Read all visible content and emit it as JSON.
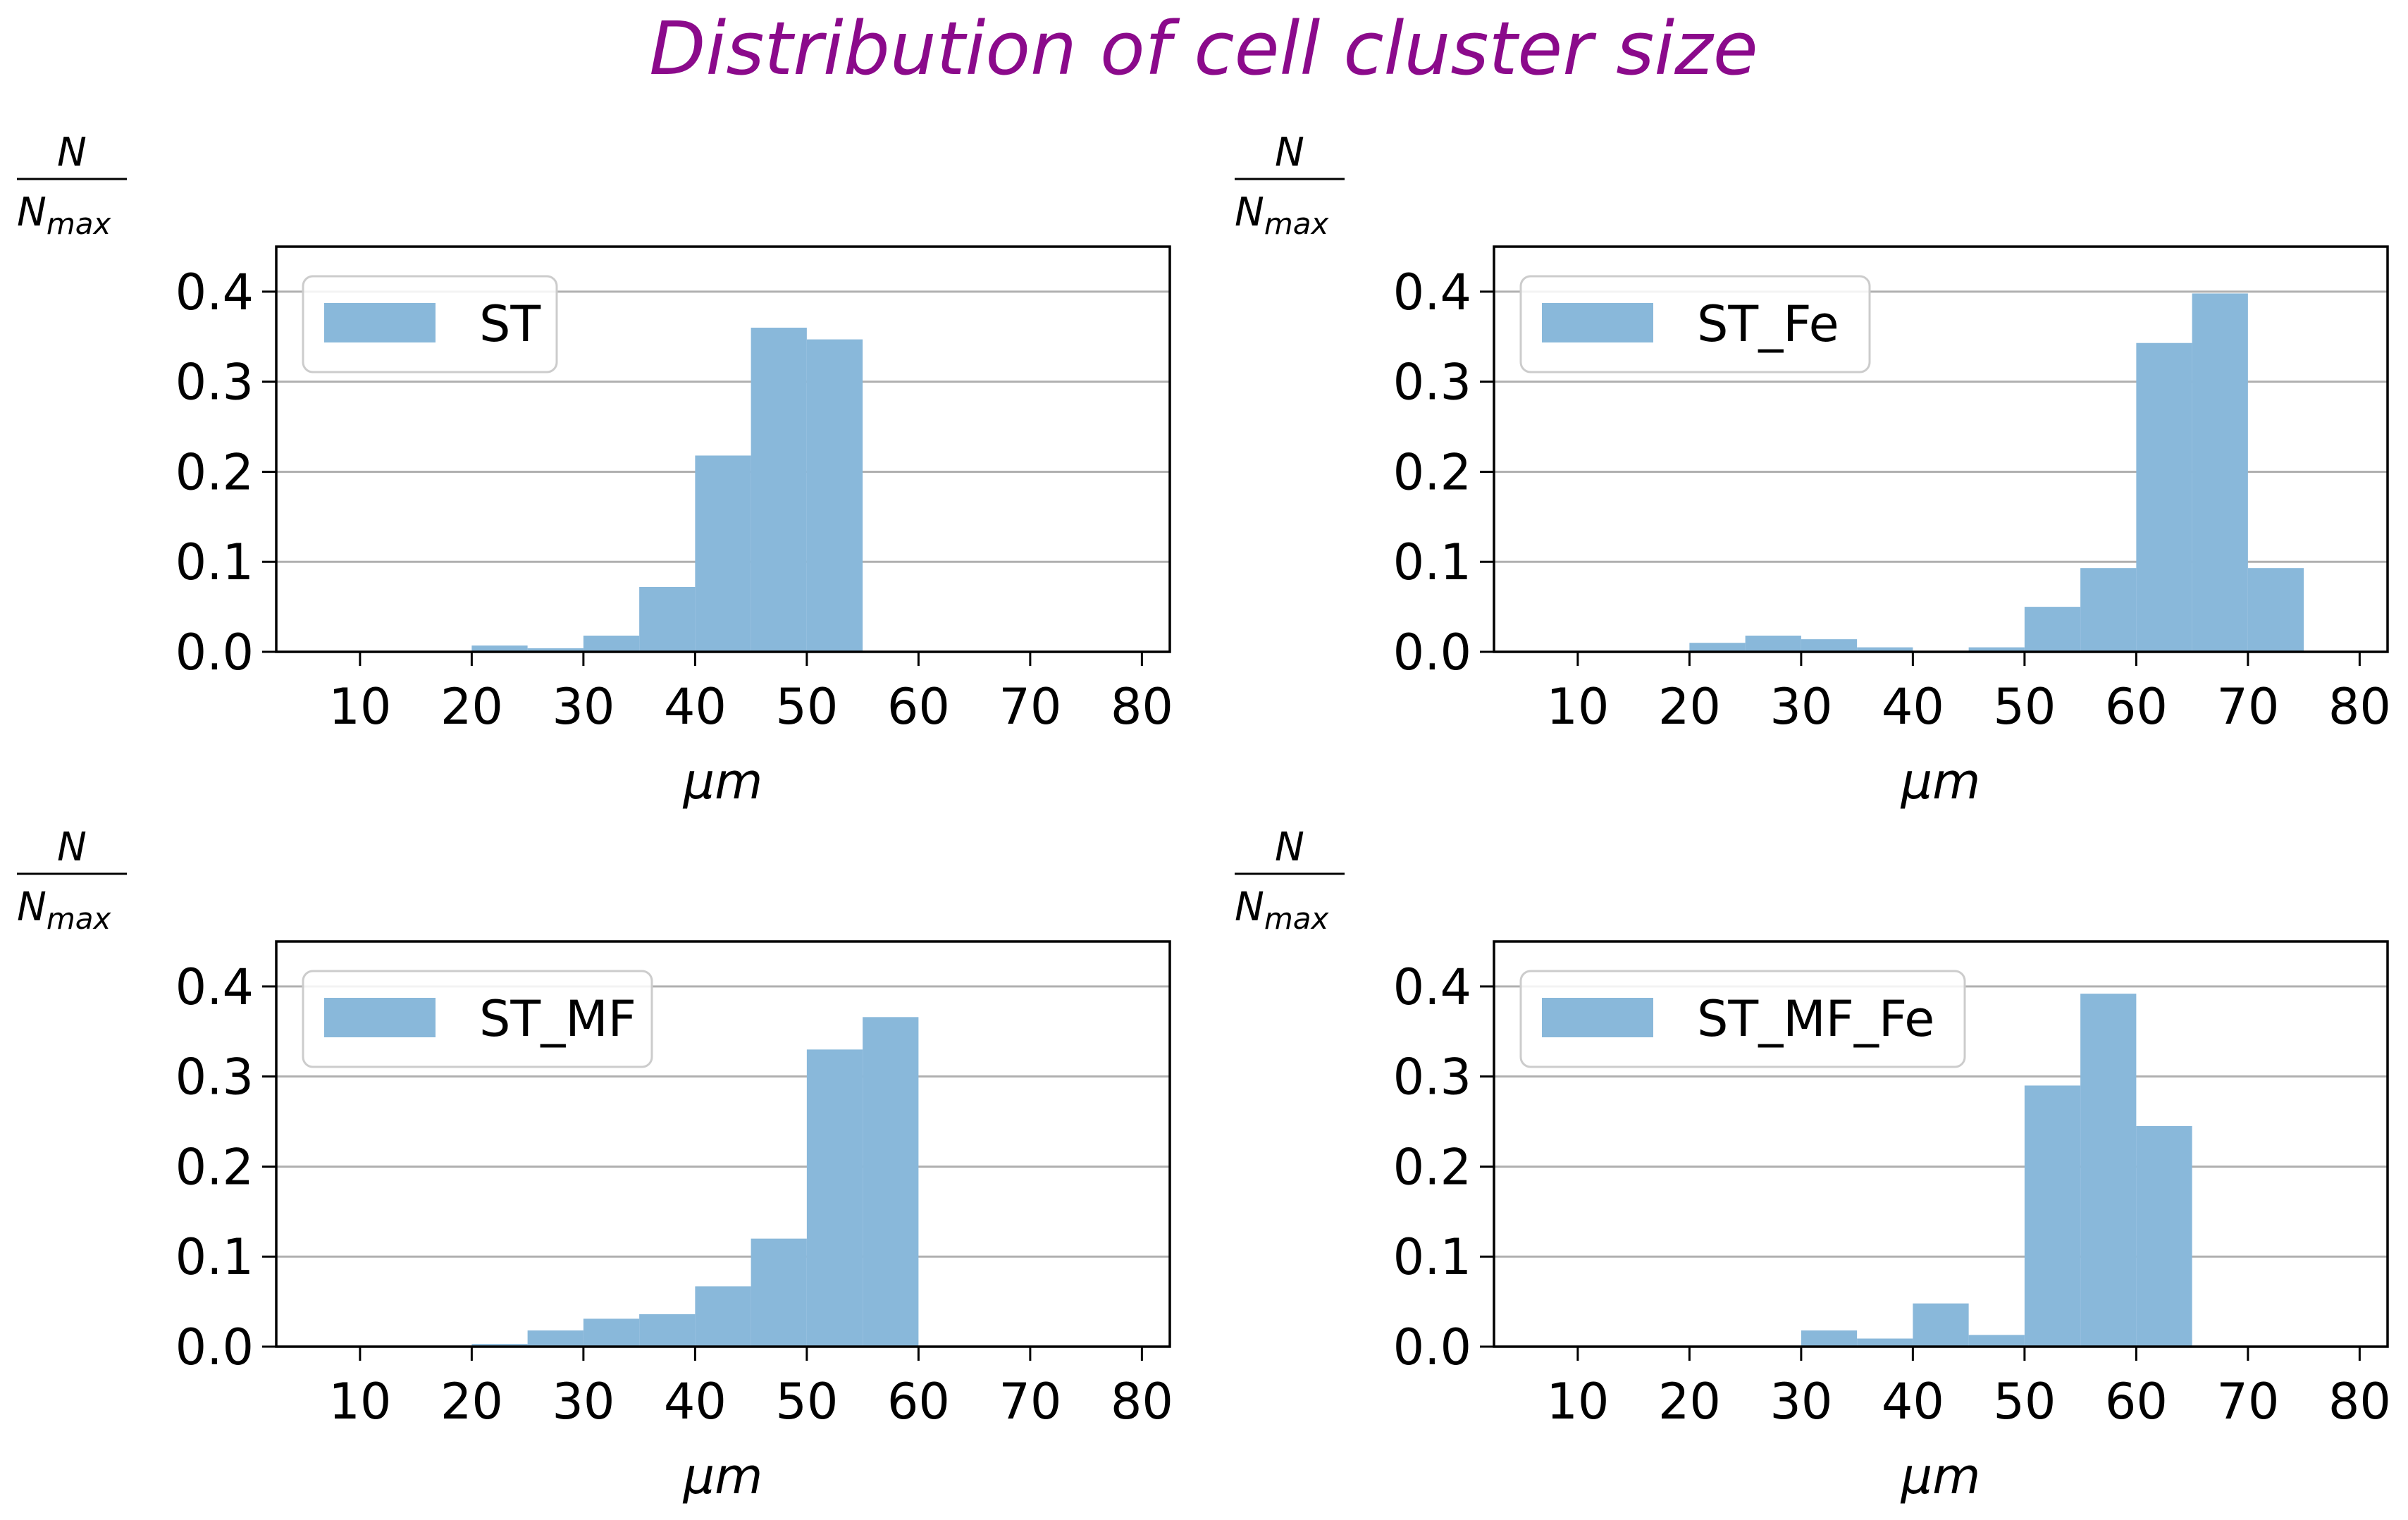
{
  "figure": {
    "title": "Distribution of cell cluster size",
    "title_color": "#8b0a8b",
    "bar_color": "#89b8da",
    "grid_color": "#b0b0b0"
  },
  "chart_data": [
    {
      "type": "bar",
      "legend": "ST",
      "xlabel": "μm",
      "ylabel_num": "N",
      "ylabel_den": "N",
      "ylabel_den_sub": "max",
      "xlim": [
        2.5,
        82.5
      ],
      "ylim": [
        0,
        0.45
      ],
      "xticks": [
        "10",
        "20",
        "30",
        "40",
        "50",
        "60",
        "70",
        "80"
      ],
      "yticks": [
        "0.0",
        "0.1",
        "0.2",
        "0.3",
        "0.4"
      ],
      "grid": "horizontal",
      "legend_position": "top-left",
      "bin_width": 5,
      "bin_starts": [
        20,
        25,
        30,
        35,
        40,
        45,
        50
      ],
      "values": [
        0.007,
        0.004,
        0.018,
        0.072,
        0.218,
        0.36,
        0.347
      ]
    },
    {
      "type": "bar",
      "legend": "ST_Fe",
      "xlabel": "μm",
      "ylabel_num": "N",
      "ylabel_den": "N",
      "ylabel_den_sub": "max",
      "xlim": [
        2.5,
        82.5
      ],
      "ylim": [
        0,
        0.45
      ],
      "xticks": [
        "10",
        "20",
        "30",
        "40",
        "50",
        "60",
        "70",
        "80"
      ],
      "yticks": [
        "0.0",
        "0.1",
        "0.2",
        "0.3",
        "0.4"
      ],
      "grid": "horizontal",
      "legend_position": "top-left",
      "bin_width": 5,
      "bin_starts": [
        20,
        25,
        30,
        35,
        40,
        45,
        50,
        55,
        60,
        65,
        70
      ],
      "values": [
        0.01,
        0.018,
        0.014,
        0.005,
        0.001,
        0.005,
        0.05,
        0.093,
        0.343,
        0.398,
        0.093
      ]
    },
    {
      "type": "bar",
      "legend": "ST_MF",
      "xlabel": "μm",
      "ylabel_num": "N",
      "ylabel_den": "N",
      "ylabel_den_sub": "max",
      "xlim": [
        2.5,
        82.5
      ],
      "ylim": [
        0,
        0.45
      ],
      "xticks": [
        "10",
        "20",
        "30",
        "40",
        "50",
        "60",
        "70",
        "80"
      ],
      "yticks": [
        "0.0",
        "0.1",
        "0.2",
        "0.3",
        "0.4"
      ],
      "grid": "horizontal",
      "legend_position": "top-left",
      "bin_width": 5,
      "bin_starts": [
        20,
        25,
        30,
        35,
        40,
        45,
        50,
        55
      ],
      "values": [
        0.003,
        0.018,
        0.031,
        0.036,
        0.067,
        0.12,
        0.33,
        0.366
      ]
    },
    {
      "type": "bar",
      "legend": "ST_MF_Fe",
      "xlabel": "μm",
      "ylabel_num": "N",
      "ylabel_den": "N",
      "ylabel_den_sub": "max",
      "xlim": [
        2.5,
        82.5
      ],
      "ylim": [
        0,
        0.45
      ],
      "xticks": [
        "10",
        "20",
        "30",
        "40",
        "50",
        "60",
        "70",
        "80"
      ],
      "yticks": [
        "0.0",
        "0.1",
        "0.2",
        "0.3",
        "0.4"
      ],
      "grid": "horizontal",
      "legend_position": "top-left",
      "bin_width": 5,
      "bin_starts": [
        30,
        35,
        40,
        45,
        50,
        55,
        60
      ],
      "values": [
        0.018,
        0.009,
        0.048,
        0.013,
        0.29,
        0.392,
        0.245
      ]
    }
  ]
}
